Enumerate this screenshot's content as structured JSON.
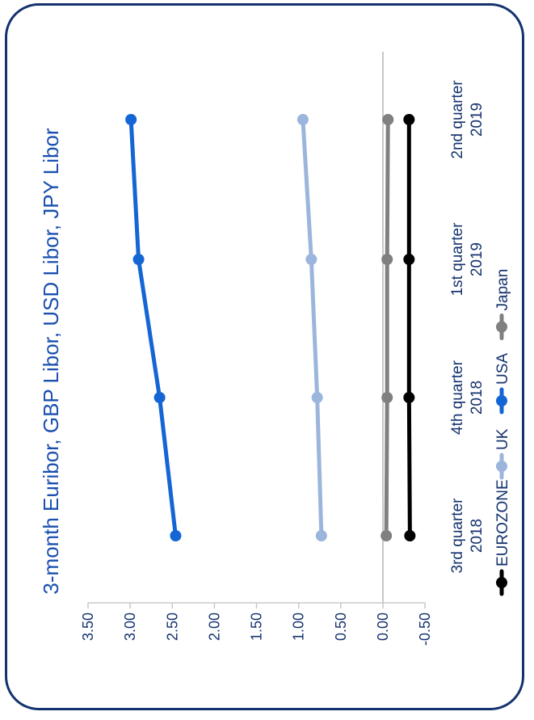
{
  "chart_data": {
    "type": "line",
    "title": "3-month Euribor, GBP Libor, USD Libor, JPY Libor",
    "categories": [
      [
        "3rd quarter",
        "2018"
      ],
      [
        "4th quarter",
        "2018"
      ],
      [
        "1st quarter",
        "2019"
      ],
      [
        "2nd quarter",
        "2019"
      ]
    ],
    "y_ticks": [
      "3.50",
      "3.00",
      "2.50",
      "2.00",
      "1.50",
      "1.00",
      "0.50",
      "0.00",
      "-0.50"
    ],
    "ylim": [
      -0.5,
      3.5
    ],
    "grid": false,
    "legend_position": "bottom",
    "series": [
      {
        "name": "EUROZONE",
        "color": "#000000",
        "values": [
          -0.32,
          -0.31,
          -0.31,
          -0.31
        ]
      },
      {
        "name": "UK",
        "color": "#9bb5dc",
        "values": [
          0.73,
          0.78,
          0.85,
          0.95
        ]
      },
      {
        "name": "USA",
        "color": "#1466d4",
        "values": [
          2.46,
          2.65,
          2.9,
          2.99
        ]
      },
      {
        "name": "Japan",
        "color": "#808080",
        "values": [
          -0.04,
          -0.05,
          -0.05,
          -0.06
        ]
      }
    ]
  }
}
